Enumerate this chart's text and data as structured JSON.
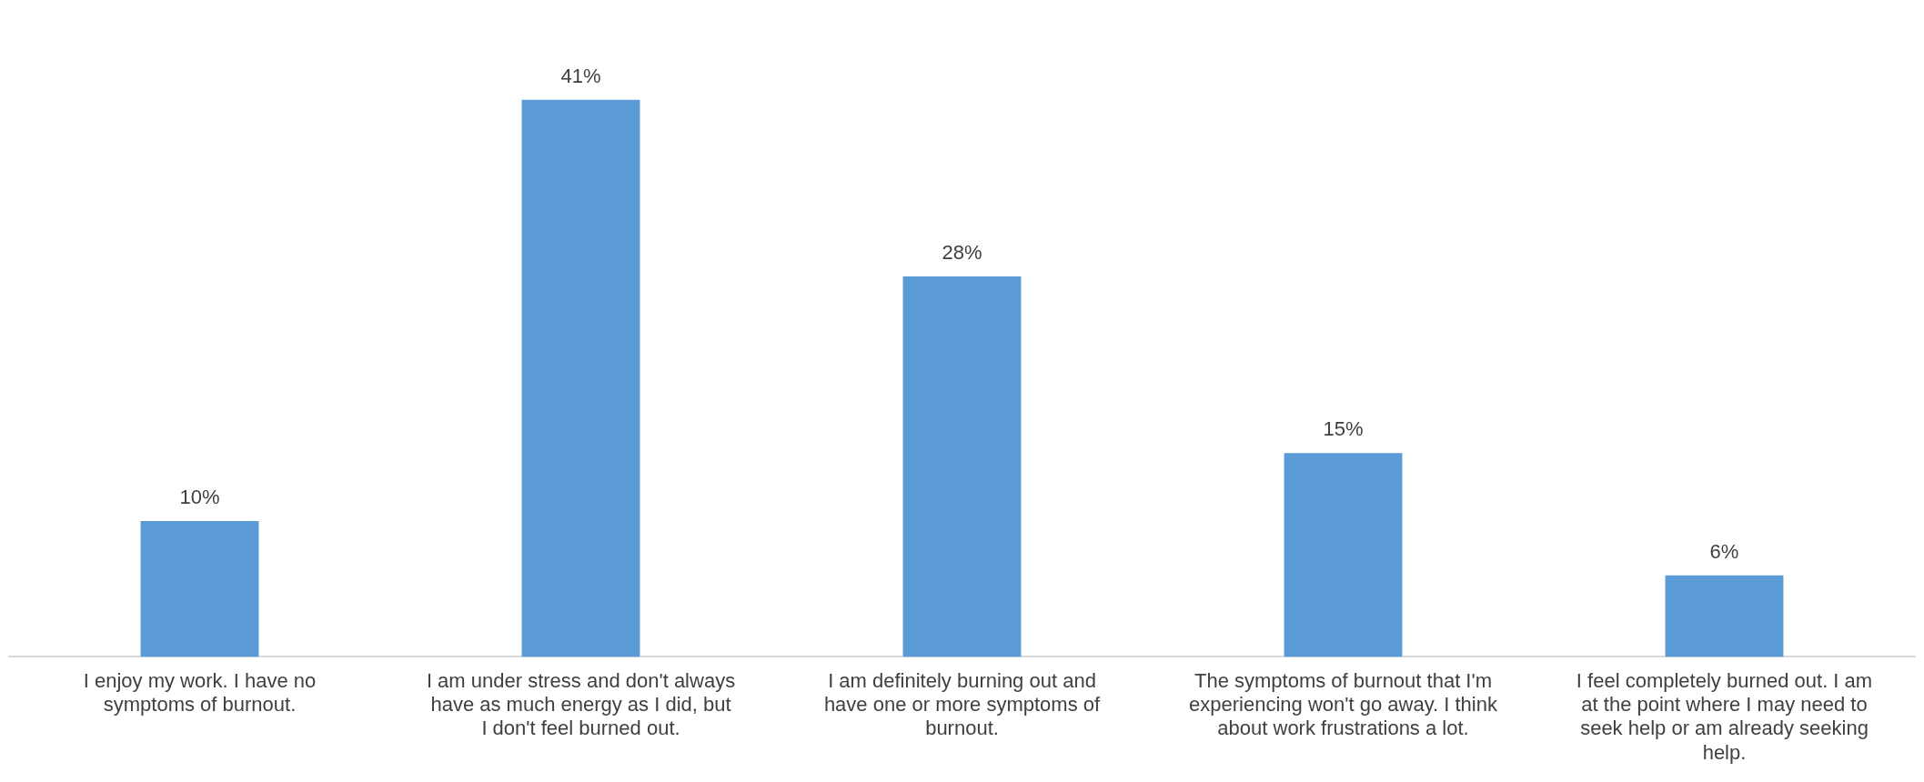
{
  "chart_data": {
    "type": "bar",
    "categories": [
      "I enjoy my work. I have no symptoms of burnout.",
      "I am under stress and don't always have as much energy as I did, but I don't feel burned out.",
      "I am definitely burning out and have one or more symptoms of burnout.",
      "The symptoms of burnout that I'm experiencing won't go away. I think about work frustrations a lot.",
      "I feel completely burned out. I am at the point where I may need to seek help or am already seeking help."
    ],
    "values": [
      10,
      41,
      28,
      15,
      6
    ],
    "value_labels": [
      "10%",
      "41%",
      "28%",
      "15%",
      "6%"
    ],
    "color": "#5b9bd5",
    "grid": false,
    "legend": false
  }
}
